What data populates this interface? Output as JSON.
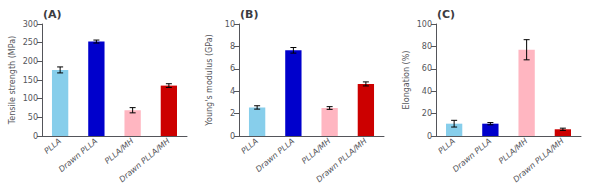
{
  "chart_data": [
    {
      "type": "bar",
      "title": "(A)",
      "ylabel": "Tensile strength (MPa)",
      "categories": [
        "PLLA",
        "Drawn PLLA",
        "PLLA/MH",
        "Drawn PLLA/MH"
      ],
      "values": [
        177,
        253,
        69,
        135
      ],
      "errors": [
        8,
        4,
        7,
        5
      ],
      "colors": [
        "#87CEEB",
        "#0000CC",
        "#FFB6C1",
        "#CC0000"
      ],
      "ylim": [
        0,
        300
      ],
      "yticks": [
        0,
        50,
        100,
        150,
        200,
        250,
        300
      ],
      "grid": false
    },
    {
      "type": "bar",
      "title": "(B)",
      "ylabel": "Young's modulus (GPa)",
      "categories": [
        "PLLA",
        "Drawn PLLA",
        "PLLA/MH",
        "Drawn PLLA/MH"
      ],
      "values": [
        2.55,
        7.65,
        2.5,
        4.65
      ],
      "errors": [
        0.15,
        0.25,
        0.12,
        0.18
      ],
      "colors": [
        "#87CEEB",
        "#0000CC",
        "#FFB6C1",
        "#CC0000"
      ],
      "ylim": [
        0,
        10
      ],
      "yticks": [
        0,
        2,
        4,
        6,
        8,
        10
      ],
      "grid": false
    },
    {
      "type": "bar",
      "title": "(C)",
      "ylabel": "Elongation (%)",
      "categories": [
        "PLLA",
        "Drawn PLLA",
        "PLLA/MH",
        "Drawn PLLA/MH"
      ],
      "values": [
        11,
        11,
        77,
        6
      ],
      "errors": [
        3,
        1,
        9,
        1
      ],
      "colors": [
        "#87CEEB",
        "#0000CC",
        "#FFB6C1",
        "#CC0000"
      ],
      "ylim": [
        0,
        100
      ],
      "yticks": [
        0,
        20,
        40,
        60,
        80,
        100
      ],
      "grid": false
    }
  ]
}
